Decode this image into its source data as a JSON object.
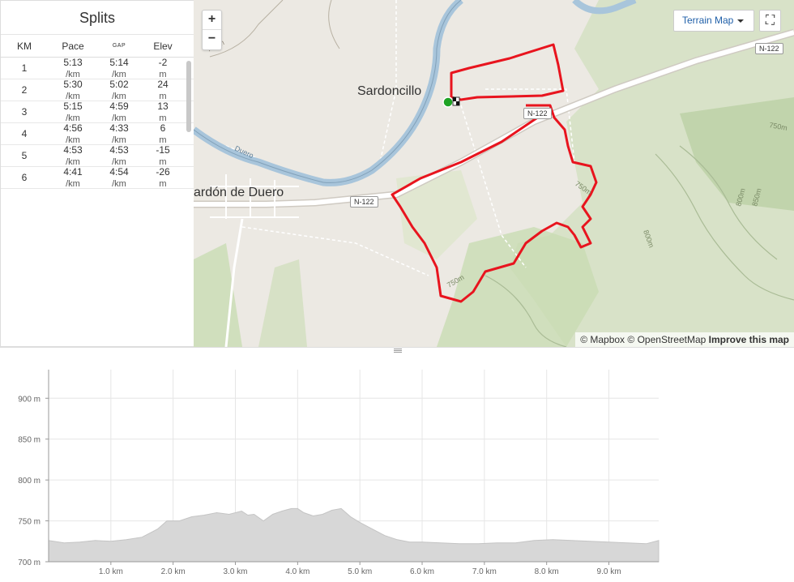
{
  "splits": {
    "title": "Splits",
    "headers": {
      "km": "KM",
      "pace": "Pace",
      "gap": "GAP",
      "elev": "Elev"
    },
    "pace_unit": "/km",
    "elev_unit": "m",
    "rows": [
      {
        "km": "1",
        "pace": "5:13",
        "gap": "5:14",
        "elev": "-2"
      },
      {
        "km": "2",
        "pace": "5:30",
        "gap": "5:02",
        "elev": "24"
      },
      {
        "km": "3",
        "pace": "5:15",
        "gap": "4:59",
        "elev": "13"
      },
      {
        "km": "4",
        "pace": "4:56",
        "gap": "4:33",
        "elev": "6"
      },
      {
        "km": "5",
        "pace": "4:53",
        "gap": "4:53",
        "elev": "-15"
      },
      {
        "km": "6",
        "pace": "4:41",
        "gap": "4:54",
        "elev": "-26"
      }
    ]
  },
  "map": {
    "zoom_in": "+",
    "zoom_out": "−",
    "map_type": "Terrain Map",
    "fullscreen_icon": "⛶",
    "towns": [
      "Sardoncillo",
      "ardón de Duero"
    ],
    "roads": [
      "N-122",
      "N-122",
      "N-122"
    ],
    "river": "Duero",
    "contours": [
      "750m",
      "750m",
      "800m",
      "850m",
      "800m",
      "750m",
      "750m"
    ],
    "attribution": {
      "mapbox": "© Mapbox",
      "osm": "© OpenStreetMap",
      "improve": "Improve this map"
    },
    "colors": {
      "route": "#e8141e",
      "start": "#1fa324",
      "river": "#a8c5db",
      "road": "#ffffff",
      "forest": "#c9dcb3"
    }
  },
  "chart_data": {
    "type": "area",
    "ylabel": "",
    "xlabel": "",
    "ylim": [
      700,
      935
    ],
    "xlim": [
      0,
      9.8
    ],
    "y_ticks": [
      "900 m",
      "850 m",
      "800 m",
      "750 m",
      "700 m"
    ],
    "y_tick_values": [
      900,
      850,
      800,
      750,
      700
    ],
    "x_ticks": [
      "1.0 km",
      "2.0 km",
      "3.0 km",
      "4.0 km",
      "5.0 km",
      "6.0 km",
      "7.0 km",
      "8.0 km",
      "9.0 km"
    ],
    "x_tick_values": [
      1,
      2,
      3,
      4,
      5,
      6,
      7,
      8,
      9
    ],
    "grid": true,
    "fill_color": "#d7d7d7",
    "x": [
      0,
      0.25,
      0.5,
      0.75,
      1.0,
      1.25,
      1.5,
      1.75,
      1.9,
      2.1,
      2.3,
      2.5,
      2.7,
      2.9,
      3.1,
      3.2,
      3.3,
      3.45,
      3.6,
      3.75,
      3.9,
      4.0,
      4.1,
      4.25,
      4.4,
      4.55,
      4.7,
      4.85,
      5.0,
      5.2,
      5.4,
      5.6,
      5.8,
      6.0,
      6.3,
      6.6,
      6.9,
      7.2,
      7.5,
      7.8,
      8.1,
      8.4,
      8.7,
      9.0,
      9.3,
      9.6,
      9.8
    ],
    "y": [
      726,
      723,
      724,
      726,
      725,
      727,
      730,
      740,
      750,
      750,
      755,
      757,
      760,
      758,
      762,
      757,
      758,
      750,
      758,
      762,
      765,
      765,
      760,
      756,
      758,
      763,
      765,
      755,
      748,
      740,
      732,
      727,
      724,
      724,
      723,
      722,
      722,
      723,
      723,
      726,
      727,
      726,
      725,
      724,
      723,
      722,
      726
    ]
  }
}
